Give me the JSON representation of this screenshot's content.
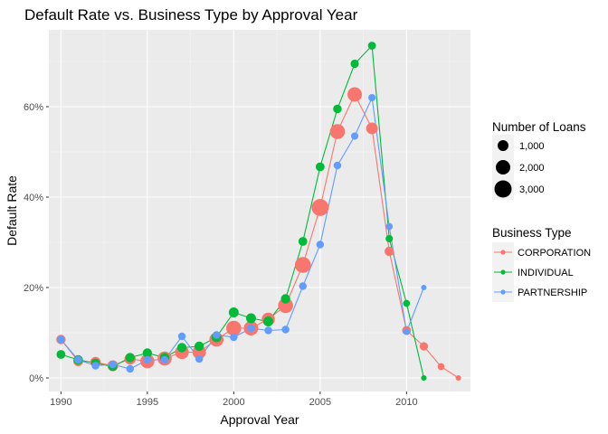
{
  "chart_data": {
    "type": "line",
    "title": "Default Rate vs. Business Type by Approval Year",
    "xlabel": "Approval Year",
    "ylabel": "Default Rate",
    "xlim": [
      1989.3,
      2013.7
    ],
    "ylim": [
      -0.03,
      0.77
    ],
    "x_ticks": [
      1990,
      1995,
      2000,
      2005,
      2010
    ],
    "x_tick_labels": [
      "1990",
      "1995",
      "2000",
      "2005",
      "2010"
    ],
    "y_ticks": [
      0,
      0.2,
      0.4,
      0.6
    ],
    "y_tick_labels": [
      "0%",
      "20%",
      "40%",
      "60%"
    ],
    "grid": true,
    "legend_placement": "right",
    "size_legend": {
      "title": "Number of Loans",
      "entries": [
        {
          "label": "1,000",
          "value": 1000
        },
        {
          "label": "2,000",
          "value": 2000
        },
        {
          "label": "3,000",
          "value": 3000
        }
      ]
    },
    "color_legend": {
      "title": "Business Type"
    },
    "series": [
      {
        "name": "CORPORATION",
        "color": "#F8766D",
        "points": [
          {
            "x": 1990,
            "y": 0.085,
            "n": 700
          },
          {
            "x": 1991,
            "y": 0.037,
            "n": 800
          },
          {
            "x": 1992,
            "y": 0.035,
            "n": 900
          },
          {
            "x": 1993,
            "y": 0.027,
            "n": 1000
          },
          {
            "x": 1994,
            "y": 0.042,
            "n": 1100
          },
          {
            "x": 1995,
            "y": 0.037,
            "n": 1900
          },
          {
            "x": 1996,
            "y": 0.043,
            "n": 1900
          },
          {
            "x": 1997,
            "y": 0.057,
            "n": 1800
          },
          {
            "x": 1998,
            "y": 0.057,
            "n": 1700
          },
          {
            "x": 1999,
            "y": 0.085,
            "n": 1900
          },
          {
            "x": 2000,
            "y": 0.11,
            "n": 2200
          },
          {
            "x": 2001,
            "y": 0.11,
            "n": 2000
          },
          {
            "x": 2002,
            "y": 0.13,
            "n": 1600
          },
          {
            "x": 2003,
            "y": 0.16,
            "n": 2200
          },
          {
            "x": 2004,
            "y": 0.25,
            "n": 2500
          },
          {
            "x": 2005,
            "y": 0.377,
            "n": 2900
          },
          {
            "x": 2006,
            "y": 0.545,
            "n": 2200
          },
          {
            "x": 2007,
            "y": 0.627,
            "n": 2000
          },
          {
            "x": 2008,
            "y": 0.552,
            "n": 1200
          },
          {
            "x": 2009,
            "y": 0.28,
            "n": 700
          },
          {
            "x": 2010,
            "y": 0.105,
            "n": 600
          },
          {
            "x": 2011,
            "y": 0.07,
            "n": 500
          },
          {
            "x": 2012,
            "y": 0.025,
            "n": 300
          },
          {
            "x": 2013,
            "y": 0.0,
            "n": 150
          }
        ]
      },
      {
        "name": "INDIVIDUAL",
        "color": "#00BA38",
        "points": [
          {
            "x": 1990,
            "y": 0.052,
            "n": 600
          },
          {
            "x": 1991,
            "y": 0.04,
            "n": 700
          },
          {
            "x": 1992,
            "y": 0.033,
            "n": 600
          },
          {
            "x": 1993,
            "y": 0.025,
            "n": 600
          },
          {
            "x": 1994,
            "y": 0.045,
            "n": 700
          },
          {
            "x": 1995,
            "y": 0.055,
            "n": 700
          },
          {
            "x": 1996,
            "y": 0.045,
            "n": 700
          },
          {
            "x": 1997,
            "y": 0.067,
            "n": 700
          },
          {
            "x": 1998,
            "y": 0.07,
            "n": 700
          },
          {
            "x": 1999,
            "y": 0.09,
            "n": 800
          },
          {
            "x": 2000,
            "y": 0.145,
            "n": 800
          },
          {
            "x": 2001,
            "y": 0.132,
            "n": 800
          },
          {
            "x": 2002,
            "y": 0.125,
            "n": 800
          },
          {
            "x": 2003,
            "y": 0.175,
            "n": 700
          },
          {
            "x": 2004,
            "y": 0.302,
            "n": 600
          },
          {
            "x": 2005,
            "y": 0.467,
            "n": 600
          },
          {
            "x": 2006,
            "y": 0.595,
            "n": 550
          },
          {
            "x": 2007,
            "y": 0.695,
            "n": 500
          },
          {
            "x": 2008,
            "y": 0.735,
            "n": 450
          },
          {
            "x": 2009,
            "y": 0.308,
            "n": 350
          },
          {
            "x": 2010,
            "y": 0.165,
            "n": 300
          },
          {
            "x": 2011,
            "y": 0.0,
            "n": 150
          }
        ]
      },
      {
        "name": "PARTNERSHIP",
        "color": "#619CFF",
        "points": [
          {
            "x": 1990,
            "y": 0.085,
            "n": 400
          },
          {
            "x": 1991,
            "y": 0.04,
            "n": 400
          },
          {
            "x": 1992,
            "y": 0.027,
            "n": 400
          },
          {
            "x": 1993,
            "y": 0.03,
            "n": 400
          },
          {
            "x": 1994,
            "y": 0.02,
            "n": 400
          },
          {
            "x": 1995,
            "y": 0.04,
            "n": 400
          },
          {
            "x": 1996,
            "y": 0.04,
            "n": 400
          },
          {
            "x": 1997,
            "y": 0.092,
            "n": 400
          },
          {
            "x": 1998,
            "y": 0.042,
            "n": 400
          },
          {
            "x": 1999,
            "y": 0.095,
            "n": 400
          },
          {
            "x": 2000,
            "y": 0.09,
            "n": 400
          },
          {
            "x": 2001,
            "y": 0.11,
            "n": 400
          },
          {
            "x": 2002,
            "y": 0.105,
            "n": 400
          },
          {
            "x": 2003,
            "y": 0.107,
            "n": 400
          },
          {
            "x": 2004,
            "y": 0.203,
            "n": 400
          },
          {
            "x": 2005,
            "y": 0.295,
            "n": 400
          },
          {
            "x": 2006,
            "y": 0.47,
            "n": 400
          },
          {
            "x": 2007,
            "y": 0.535,
            "n": 350
          },
          {
            "x": 2008,
            "y": 0.62,
            "n": 350
          },
          {
            "x": 2009,
            "y": 0.335,
            "n": 300
          },
          {
            "x": 2010,
            "y": 0.102,
            "n": 250
          },
          {
            "x": 2011,
            "y": 0.2,
            "n": 150
          }
        ]
      }
    ]
  }
}
